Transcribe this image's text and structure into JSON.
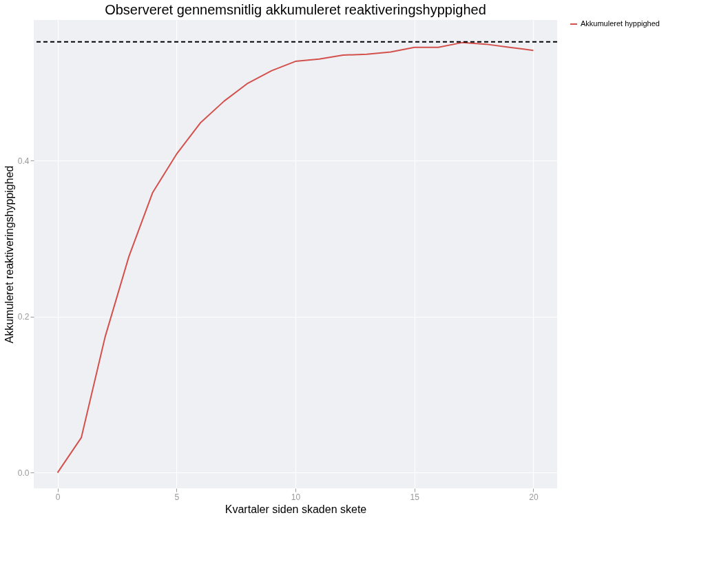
{
  "chart_data": {
    "type": "line",
    "title": "Observeret gennemsnitlig akkumuleret reaktiveringshyppighed",
    "xlabel": "Kvartaler siden skaden skete",
    "ylabel": "Akkumuleret reaktiveringshyppighed",
    "x": [
      0,
      1,
      2,
      3,
      4,
      5,
      6,
      7,
      8,
      9,
      10,
      11,
      12,
      13,
      14,
      15,
      16,
      17,
      18,
      19,
      20
    ],
    "series": [
      {
        "name": "Akkumuleret hyppighed",
        "color": "#d4504c",
        "values": [
          0,
          0.045,
          0.174,
          0.277,
          0.359,
          0.408,
          0.448,
          0.476,
          0.499,
          0.515,
          0.527,
          0.53,
          0.535,
          0.536,
          0.539,
          0.545,
          0.545,
          0.551,
          0.549,
          0.545,
          0.541
        ]
      }
    ],
    "ref_lines": [
      {
        "axis": "y",
        "value": 0.552,
        "color": "#000000",
        "line_style": "dashed"
      }
    ],
    "xlim": [
      -1,
      21
    ],
    "ylim": [
      -0.02,
      0.58
    ],
    "xticks": [
      0,
      5,
      10,
      15,
      20
    ],
    "yticks": [
      {
        "value": 0,
        "label": "0.0"
      },
      {
        "value": 0.2,
        "label": "0.2"
      },
      {
        "value": 0.4,
        "label": "0.4"
      }
    ],
    "grid": true,
    "legend": "right",
    "line_style": "solid",
    "marker": "none"
  }
}
